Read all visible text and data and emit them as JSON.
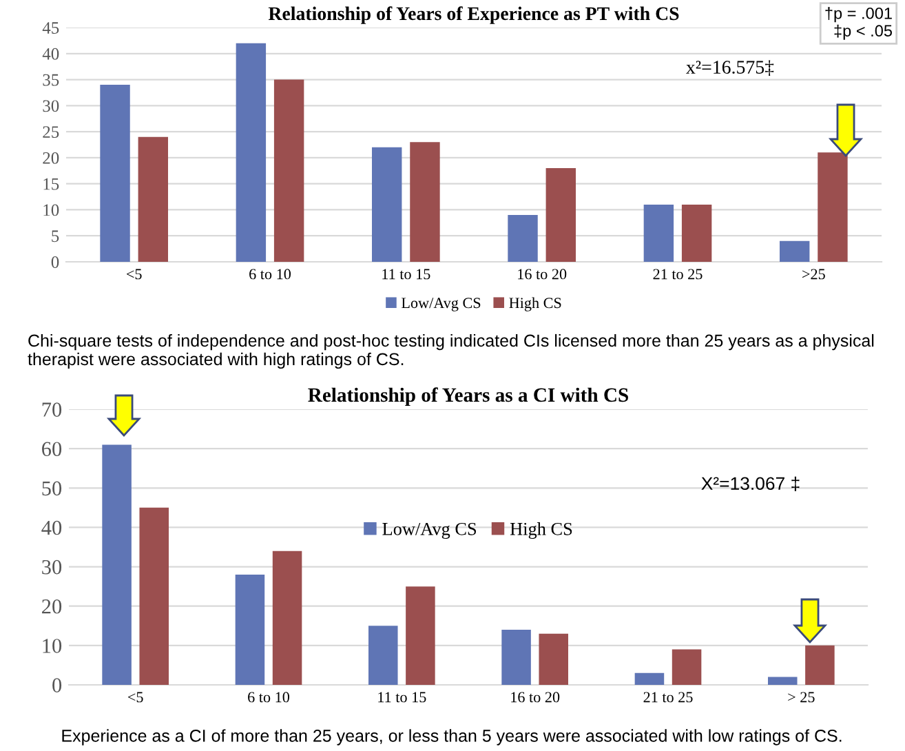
{
  "chart_data": [
    {
      "type": "bar",
      "title": "Relationship of Years of Experience as PT with CS",
      "categories": [
        "<5",
        "6 to 10",
        "11 to 15",
        "16 to 20",
        "21 to 25",
        ">25"
      ],
      "series": [
        {
          "name": "Low/Avg CS",
          "color": "#5f75b5",
          "values": [
            34,
            42,
            22,
            9,
            11,
            4
          ]
        },
        {
          "name": "High CS",
          "color": "#9b4f4f",
          "values": [
            24,
            35,
            23,
            18,
            11,
            21
          ]
        }
      ],
      "ylim": [
        0,
        45
      ],
      "yticks": [
        0,
        5,
        10,
        15,
        20,
        25,
        30,
        35,
        40,
        45
      ],
      "grid": "y",
      "legend": "bottom",
      "annotations": [
        "x²=16.575‡",
        "†p = .001\n‡p < .05",
        "Chi-square tests of independence and post-hoc testing indicated CIs licensed more than 25 years as a physical therapist were associated with high ratings of CS."
      ]
    },
    {
      "type": "bar",
      "title": "Relationship of Years as a CI with CS",
      "categories": [
        "<5",
        "6 to 10",
        "11 to 15",
        "16 to 20",
        "21 to 25",
        "> 25"
      ],
      "series": [
        {
          "name": "Low/Avg CS",
          "color": "#5f75b5",
          "values": [
            61,
            28,
            15,
            14,
            3,
            2
          ]
        },
        {
          "name": "High CS",
          "color": "#9b4f4f",
          "values": [
            45,
            34,
            25,
            13,
            9,
            10
          ]
        }
      ],
      "ylim": [
        0,
        70
      ],
      "yticks": [
        0,
        10,
        20,
        30,
        40,
        50,
        60,
        70
      ],
      "grid": "y",
      "legend": "top",
      "annotations": [
        "X²=13.067 ‡",
        "Experience as a CI of more than 25 years, or less than 5 years were associated with low ratings of CS."
      ]
    }
  ]
}
